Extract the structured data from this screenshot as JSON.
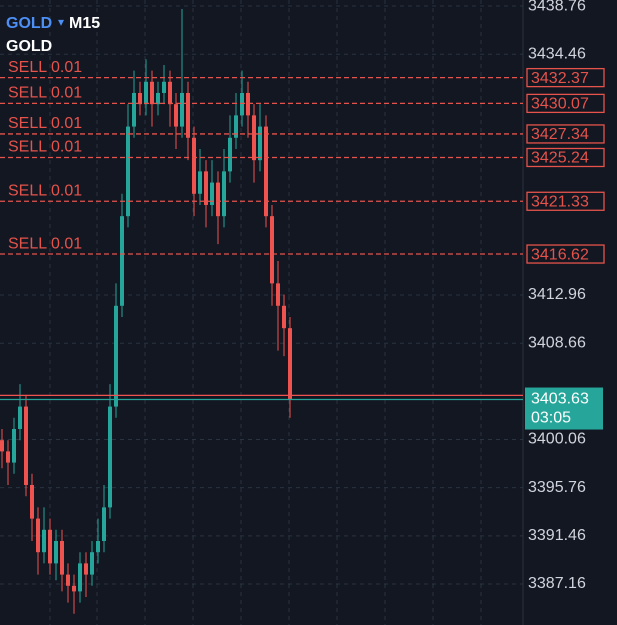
{
  "header": {
    "symbol": "GOLD",
    "timeframe": "M15",
    "subtitle": "GOLD"
  },
  "chart_data": {
    "type": "candlestick",
    "ylim": [
      3383.5,
      3439.3
    ],
    "yticks": [
      3438.76,
      3434.46,
      3412.96,
      3408.66,
      3400.06,
      3395.76,
      3391.46,
      3387.16
    ],
    "grid": true,
    "up_color": "#26a69a",
    "down_color": "#ef5350",
    "series": [
      {
        "name": "GOLD",
        "open": [
          3400,
          3399,
          3398,
          3401,
          3403,
          3396,
          3393,
          3390,
          3392,
          3389,
          3391,
          3388,
          3387,
          3386.5,
          3389,
          3388,
          3390,
          3391,
          3394,
          3403,
          3412,
          3420,
          3428,
          3431,
          3430,
          3432,
          3430,
          3431,
          3432,
          3430,
          3428,
          3431,
          3427,
          3422,
          3424,
          3421,
          3423,
          3420,
          3424,
          3427,
          3429,
          3431,
          3429,
          3425,
          3428,
          3420,
          3414,
          3412,
          3410
        ],
        "high": [
          3401,
          3400,
          3402,
          3405,
          3404,
          3397,
          3394,
          3394,
          3393,
          3392,
          3392,
          3389,
          3388,
          3390,
          3390,
          3391,
          3393,
          3396,
          3405,
          3414,
          3422,
          3430,
          3433,
          3432,
          3434,
          3433,
          3432,
          3433.5,
          3433,
          3431,
          3438.5,
          3432,
          3428,
          3426,
          3425,
          3425,
          3424,
          3426,
          3429,
          3431,
          3433,
          3432,
          3430,
          3430,
          3429,
          3421,
          3416,
          3413,
          3411
        ],
        "low": [
          3397.5,
          3396,
          3397,
          3400,
          3395,
          3391,
          3388,
          3389,
          3388,
          3387.5,
          3386.5,
          3385.5,
          3384.5,
          3385.5,
          3386,
          3387,
          3389,
          3390,
          3393,
          3402,
          3411,
          3419,
          3427,
          3429,
          3429,
          3428,
          3429,
          3430,
          3428,
          3426,
          3427,
          3425,
          3420,
          3421,
          3419,
          3420,
          3417.5,
          3419,
          3423,
          3426,
          3428,
          3427,
          3423,
          3424,
          3419,
          3412,
          3408,
          3407.5,
          3402
        ],
        "close": [
          3399,
          3398,
          3401,
          3403,
          3396,
          3393,
          3390,
          3392,
          3389,
          3391,
          3388,
          3387,
          3386.5,
          3389,
          3388,
          3390,
          3391,
          3394,
          3403,
          3412,
          3420,
          3428,
          3431,
          3430,
          3432,
          3430,
          3431,
          3432,
          3430,
          3428,
          3431,
          3427,
          3422,
          3424,
          3421,
          3423,
          3420,
          3424,
          3427,
          3429,
          3431,
          3429,
          3425,
          3428,
          3420,
          3414,
          3412,
          3410,
          3403.63
        ]
      }
    ],
    "orders": [
      {
        "label": "SELL 0.01",
        "price": 3432.37,
        "color": "#e5534b"
      },
      {
        "label": "SELL 0.01",
        "price": 3430.07,
        "color": "#e5534b"
      },
      {
        "label": "SELL 0.01",
        "price": 3427.34,
        "color": "#e5534b"
      },
      {
        "label": "SELL 0.01",
        "price": 3425.24,
        "color": "#e5534b"
      },
      {
        "label": "SELL 0.01",
        "price": 3421.33,
        "color": "#e5534b"
      },
      {
        "label": "SELL 0.01",
        "price": 3416.62,
        "color": "#e5534b"
      }
    ],
    "ask": 3404.0,
    "current": {
      "price": 3403.63,
      "countdown": "03:05",
      "color": "#26a69a"
    }
  }
}
